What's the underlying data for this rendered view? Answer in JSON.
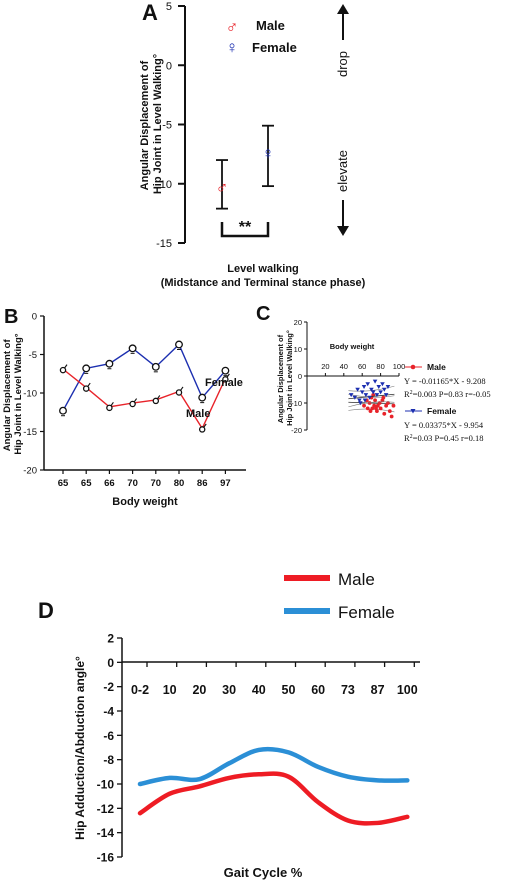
{
  "chart_data": [
    {
      "panel": "A",
      "type": "scatter",
      "ylabel_lines": [
        "Angular Displacement of",
        "Hip Joint in Level Walking°"
      ],
      "xlabel_lines": [
        "Level walking",
        "(Midstance and Terminal stance phase)"
      ],
      "ylim": [
        -15,
        5
      ],
      "yticks": [
        5,
        0,
        -5,
        -10,
        -15
      ],
      "series": [
        {
          "name": "Male",
          "symbol": "♂",
          "color": "#e8232a",
          "mean": -10.3,
          "error_low": -12.1,
          "error_high": -8.0
        },
        {
          "name": "Female",
          "symbol": "♀",
          "color": "#1c2fb0",
          "mean": -7.4,
          "error_low": -10.2,
          "error_high": -5.1
        }
      ],
      "significance": "**",
      "annotations": {
        "up": "drop",
        "down": "elevate"
      }
    },
    {
      "panel": "B",
      "type": "line",
      "ylabel_lines": [
        "Angular Displacement of",
        "Hip Joint in Level Walking°"
      ],
      "xlabel": "Body weight",
      "categories": [
        "65",
        "65",
        "66",
        "70",
        "70",
        "80",
        "86",
        "97"
      ],
      "ylim": [
        -20,
        0
      ],
      "yticks": [
        0,
        -5,
        -10,
        -15,
        -20
      ],
      "series": [
        {
          "name": "Female",
          "color": "#1c2fb0",
          "values": [
            -12.3,
            -6.8,
            -6.2,
            -4.2,
            -6.6,
            -3.7,
            -10.6,
            -7.1
          ]
        },
        {
          "name": "Male",
          "color": "#e8232a",
          "values": [
            -6.9,
            -9.3,
            -11.8,
            -11.3,
            -10.9,
            -9.8,
            -14.6,
            -8.1
          ]
        }
      ]
    },
    {
      "panel": "C",
      "type": "scatter",
      "ylabel_lines": [
        "Angular Displacement of",
        "Hip Joint in Level Walking°"
      ],
      "xlabel": "Body weight",
      "xticks": [
        20,
        40,
        60,
        80,
        100
      ],
      "ylim": [
        -20,
        20
      ],
      "yticks": [
        20,
        10,
        0,
        -10,
        -20
      ],
      "series": [
        {
          "name": "Male",
          "color": "#e8232a",
          "marker": "circle",
          "points": [
            [
              62,
              -11
            ],
            [
              65,
              -9
            ],
            [
              66,
              -12
            ],
            [
              68,
              -10
            ],
            [
              70,
              -8
            ],
            [
              71,
              -12
            ],
            [
              73,
              -11
            ],
            [
              74,
              -9
            ],
            [
              76,
              -13
            ],
            [
              77,
              -11
            ],
            [
              79,
              -10
            ],
            [
              80,
              -12
            ],
            [
              82,
              -9
            ],
            [
              84,
              -14
            ],
            [
              86,
              -11
            ],
            [
              88,
              -10
            ],
            [
              90,
              -13
            ],
            [
              92,
              -15
            ],
            [
              94,
              -11
            ],
            [
              75,
              -12
            ],
            [
              69,
              -13
            ],
            [
              83,
              -8
            ],
            [
              72,
              -7
            ]
          ],
          "fit": {
            "slope": -0.01165,
            "intercept": -9.208
          }
        },
        {
          "name": "Female",
          "color": "#1c2fb0",
          "marker": "triangle-down",
          "points": [
            [
              48,
              -7
            ],
            [
              52,
              -8
            ],
            [
              55,
              -5
            ],
            [
              57,
              -9
            ],
            [
              60,
              -6
            ],
            [
              62,
              -4
            ],
            [
              64,
              -7
            ],
            [
              66,
              -3
            ],
            [
              68,
              -8
            ],
            [
              70,
              -5
            ],
            [
              72,
              -6
            ],
            [
              74,
              -2
            ],
            [
              76,
              -7
            ],
            [
              78,
              -4
            ],
            [
              80,
              -6
            ],
            [
              82,
              -3
            ],
            [
              84,
              -5
            ],
            [
              58,
              -10
            ],
            [
              63,
              -9
            ],
            [
              86,
              -7
            ],
            [
              88,
              -4
            ]
          ],
          "fit": {
            "slope": 0.03375,
            "intercept": -9.954
          }
        }
      ],
      "legend": [
        {
          "name": "Male",
          "equation": "Y = -0.01165*X - 9.208",
          "stats_r2": "0.003",
          "stats_rest": "P=0.83  r=-0.05"
        },
        {
          "name": "Female",
          "equation": "Y = 0.03375*X - 9.954",
          "stats_r2": "0.03",
          "stats_rest": "P=0.45  r=0.18"
        }
      ]
    },
    {
      "panel": "D",
      "type": "line",
      "ylabel": "Hip Adduction/Abduction angle°",
      "xlabel": "Gait Cycle %",
      "categories": [
        "0-2",
        "10",
        "20",
        "30",
        "40",
        "50",
        "60",
        "73",
        "87",
        "100"
      ],
      "ylim": [
        -16,
        2
      ],
      "yticks": [
        2,
        0,
        -2,
        -4,
        -6,
        -8,
        -10,
        -12,
        -14,
        -16
      ],
      "series": [
        {
          "name": "Male",
          "color": "#ee1c24",
          "values": [
            -12.4,
            -10.8,
            -10.2,
            -9.5,
            -9.2,
            -9.4,
            -11.5,
            -13.0,
            -13.2,
            -12.7
          ]
        },
        {
          "name": "Female",
          "color": "#2b8fd6",
          "values": [
            -10.0,
            -9.5,
            -9.6,
            -8.3,
            -7.2,
            -7.4,
            -8.6,
            -9.4,
            -9.7,
            -9.7
          ]
        }
      ]
    }
  ]
}
